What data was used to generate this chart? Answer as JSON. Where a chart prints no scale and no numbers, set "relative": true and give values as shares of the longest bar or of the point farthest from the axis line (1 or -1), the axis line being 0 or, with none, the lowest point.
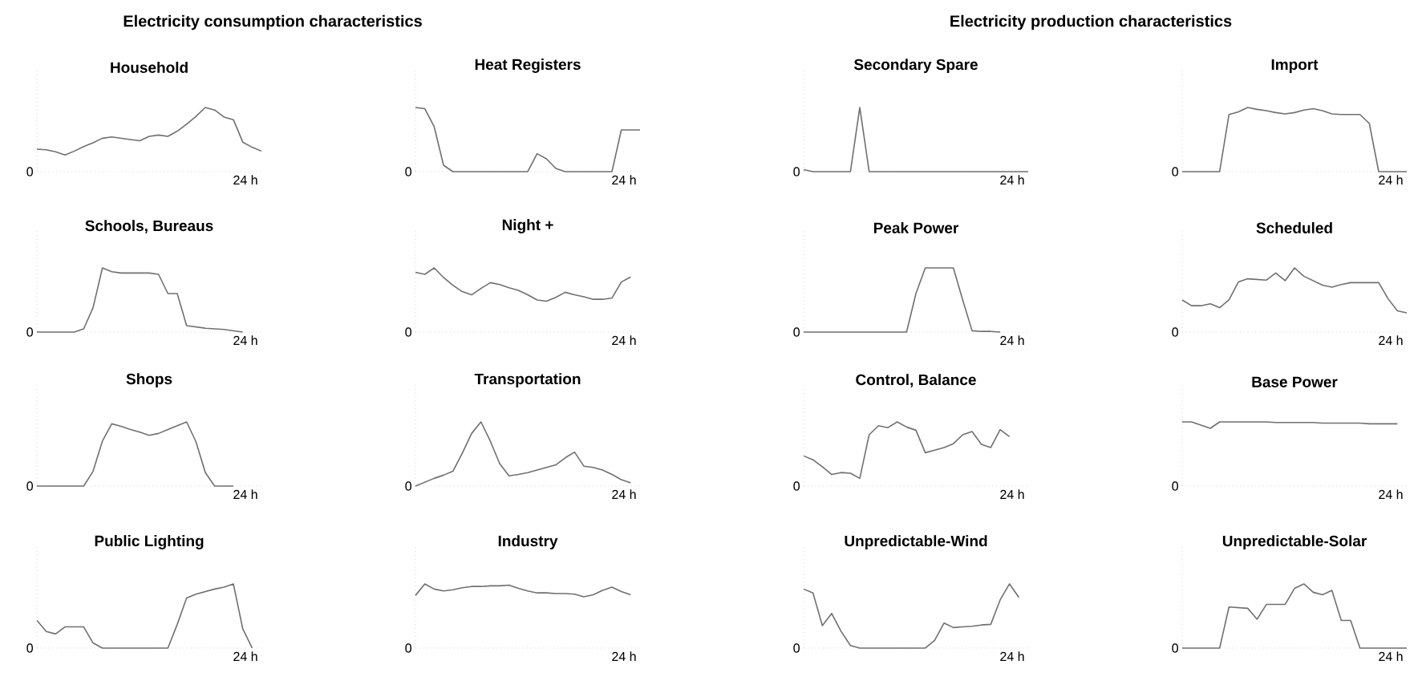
{
  "chart_data": [
    {
      "type": "other",
      "title": "Electricity consumption characteristics"
    },
    {
      "type": "other",
      "title": "Electricity production characteristics"
    },
    {
      "type": "line",
      "title": "Household",
      "relative": true,
      "color": "#707070",
      "annotations": [
        "0",
        "24 h"
      ],
      "categories": [
        null,
        null,
        null,
        null,
        null,
        null,
        null,
        null,
        null,
        null,
        null,
        null,
        null,
        null,
        null,
        null,
        null,
        null,
        null,
        null,
        null,
        null,
        null,
        null,
        null
      ],
      "values": [
        0.35,
        0.34,
        0.31,
        0.26,
        0.32,
        0.39,
        0.45,
        0.52,
        0.54,
        0.52,
        0.5,
        0.48,
        0.55,
        0.57,
        0.55,
        0.63,
        0.74,
        0.86,
        1,
        0.96,
        0.85,
        0.81,
        0.46,
        0.38,
        0.32
      ]
    },
    {
      "type": "line",
      "title": "Heat Registers",
      "relative": true,
      "color": "#707070",
      "annotations": [
        "0",
        "24 h"
      ],
      "categories": [
        null,
        null,
        null,
        null,
        null,
        null,
        null,
        null,
        null,
        null,
        null,
        null,
        null,
        null,
        null,
        null,
        null,
        null,
        null,
        null,
        null,
        null,
        null,
        null,
        null
      ],
      "values": [
        1,
        0.98,
        0.7,
        0.1,
        0,
        0,
        0,
        0,
        0,
        0,
        0,
        0,
        0,
        0.28,
        0.2,
        0.05,
        0,
        0,
        0,
        0,
        0,
        0,
        0.65,
        0.65,
        0.65
      ]
    },
    {
      "type": "line",
      "title": "Secondary Spare",
      "relative": true,
      "color": "#707070",
      "annotations": [
        "0",
        "24 h"
      ],
      "categories": [
        null,
        null,
        null,
        null,
        null,
        null,
        null,
        null,
        null,
        null,
        null,
        null,
        null,
        null,
        null,
        null,
        null,
        null,
        null,
        null,
        null,
        null,
        null,
        null,
        null
      ],
      "values": [
        0.03,
        0,
        0,
        0,
        0,
        0,
        1,
        0,
        0,
        0,
        0,
        0,
        0,
        0,
        0,
        0,
        0,
        0,
        0,
        0,
        0,
        0,
        0,
        0,
        0
      ]
    },
    {
      "type": "line",
      "title": "Import",
      "relative": true,
      "color": "#707070",
      "annotations": [
        "0",
        "24 h"
      ],
      "categories": [
        null,
        null,
        null,
        null,
        null,
        null,
        null,
        null,
        null,
        null,
        null,
        null,
        null,
        null,
        null,
        null,
        null,
        null,
        null,
        null,
        null,
        null,
        null,
        null,
        null
      ],
      "values": [
        0,
        0,
        0,
        0,
        0,
        0.89,
        0.93,
        1,
        0.97,
        0.95,
        0.92,
        0.9,
        0.92,
        0.96,
        0.98,
        0.95,
        0.9,
        0.89,
        0.89,
        0.89,
        0.75,
        0,
        0,
        0,
        0
      ]
    },
    {
      "type": "line",
      "title": "Schools, Bureaus",
      "relative": true,
      "color": "#707070",
      "annotations": [
        "0",
        "24 h"
      ],
      "categories": [
        null,
        null,
        null,
        null,
        null,
        null,
        null,
        null,
        null,
        null,
        null,
        null,
        null,
        null,
        null,
        null,
        null,
        null,
        null,
        null,
        null,
        null,
        null
      ],
      "values": [
        0,
        0,
        0,
        0,
        0,
        0.05,
        0.38,
        1,
        0.94,
        0.92,
        0.92,
        0.92,
        0.92,
        0.9,
        0.6,
        0.6,
        0.1,
        0.08,
        0.06,
        0.05,
        0.04,
        0.02,
        0
      ]
    },
    {
      "type": "line",
      "title": "Night +",
      "relative": true,
      "color": "#707070",
      "annotations": [
        "0",
        "24 h"
      ],
      "categories": [
        null,
        null,
        null,
        null,
        null,
        null,
        null,
        null,
        null,
        null,
        null,
        null,
        null,
        null,
        null,
        null,
        null,
        null,
        null,
        null,
        null,
        null,
        null,
        null
      ],
      "values": [
        0.93,
        0.9,
        1,
        0.85,
        0.73,
        0.63,
        0.58,
        0.68,
        0.77,
        0.74,
        0.69,
        0.65,
        0.58,
        0.5,
        0.48,
        0.54,
        0.62,
        0.58,
        0.55,
        0.51,
        0.51,
        0.53,
        0.78,
        0.86
      ]
    },
    {
      "type": "line",
      "title": "Peak Power",
      "relative": true,
      "color": "#707070",
      "annotations": [
        "0",
        "24 h"
      ],
      "categories": [
        null,
        null,
        null,
        null,
        null,
        null,
        null,
        null,
        null,
        null,
        null,
        null,
        null,
        null,
        null,
        null,
        null,
        null,
        null,
        null,
        null,
        null
      ],
      "values": [
        0,
        0,
        0,
        0,
        0,
        0,
        0,
        0,
        0,
        0,
        0,
        0,
        0.6,
        1,
        1,
        1,
        1,
        0.5,
        0.02,
        0.01,
        0.01,
        0
      ]
    },
    {
      "type": "line",
      "title": "Scheduled",
      "relative": true,
      "color": "#707070",
      "annotations": [
        "0",
        "24 h"
      ],
      "categories": [
        null,
        null,
        null,
        null,
        null,
        null,
        null,
        null,
        null,
        null,
        null,
        null,
        null,
        null,
        null,
        null,
        null,
        null,
        null,
        null,
        null,
        null,
        null,
        null,
        null
      ],
      "values": [
        0.5,
        0.41,
        0.41,
        0.44,
        0.38,
        0.5,
        0.78,
        0.83,
        0.82,
        0.81,
        0.92,
        0.8,
        1,
        0.87,
        0.8,
        0.73,
        0.7,
        0.74,
        0.77,
        0.77,
        0.77,
        0.77,
        0.52,
        0.33,
        0.3
      ]
    },
    {
      "type": "line",
      "title": "Shops",
      "relative": true,
      "color": "#707070",
      "annotations": [
        "0",
        "24 h"
      ],
      "categories": [
        null,
        null,
        null,
        null,
        null,
        null,
        null,
        null,
        null,
        null,
        null,
        null,
        null,
        null,
        null,
        null,
        null,
        null,
        null,
        null,
        null,
        null
      ],
      "values": [
        0,
        0,
        0,
        0,
        0,
        0,
        0.23,
        0.7,
        0.97,
        0.93,
        0.88,
        0.84,
        0.79,
        0.82,
        0.88,
        0.94,
        1,
        0.69,
        0.21,
        0,
        0,
        0
      ]
    },
    {
      "type": "line",
      "title": "Transportation",
      "relative": true,
      "color": "#707070",
      "annotations": [
        "0",
        "24 h"
      ],
      "categories": [
        null,
        null,
        null,
        null,
        null,
        null,
        null,
        null,
        null,
        null,
        null,
        null,
        null,
        null,
        null,
        null,
        null,
        null,
        null,
        null,
        null,
        null,
        null,
        null
      ],
      "values": [
        0,
        0.06,
        0.12,
        0.17,
        0.23,
        0.51,
        0.82,
        1,
        0.7,
        0.35,
        0.16,
        0.18,
        0.21,
        0.25,
        0.29,
        0.33,
        0.44,
        0.53,
        0.31,
        0.29,
        0.25,
        0.18,
        0.1,
        0.05
      ]
    },
    {
      "type": "line",
      "title": "Control, Balance",
      "relative": true,
      "color": "#707070",
      "annotations": [
        "0",
        "24 h"
      ],
      "categories": [
        null,
        null,
        null,
        null,
        null,
        null,
        null,
        null,
        null,
        null,
        null,
        null,
        null,
        null,
        null,
        null,
        null,
        null,
        null,
        null,
        null,
        null,
        null
      ],
      "values": [
        0.47,
        0.41,
        0.3,
        0.18,
        0.21,
        0.2,
        0.12,
        0.8,
        0.94,
        0.91,
        1,
        0.92,
        0.87,
        0.52,
        0.56,
        0.6,
        0.66,
        0.8,
        0.85,
        0.65,
        0.6,
        0.88,
        0.77
      ]
    },
    {
      "type": "line",
      "title": "Base Power",
      "relative": true,
      "color": "#707070",
      "annotations": [
        "0",
        "24 h"
      ],
      "categories": [
        null,
        null,
        null,
        null,
        null,
        null,
        null,
        null,
        null,
        null,
        null,
        null,
        null,
        null,
        null,
        null,
        null,
        null,
        null,
        null,
        null,
        null,
        null,
        null
      ],
      "values": [
        1,
        1,
        0.95,
        0.9,
        1,
        1,
        1,
        1,
        1,
        1,
        0.99,
        0.99,
        0.99,
        0.99,
        0.99,
        0.98,
        0.98,
        0.98,
        0.98,
        0.98,
        0.97,
        0.97,
        0.97,
        0.97
      ]
    },
    {
      "type": "line",
      "title": "Public Lighting",
      "relative": true,
      "color": "#707070",
      "annotations": [
        "0",
        "24 h"
      ],
      "categories": [
        null,
        null,
        null,
        null,
        null,
        null,
        null,
        null,
        null,
        null,
        null,
        null,
        null,
        null,
        null,
        null,
        null,
        null,
        null,
        null,
        null,
        null,
        null,
        null
      ],
      "values": [
        0.43,
        0.26,
        0.22,
        0.33,
        0.33,
        0.33,
        0.08,
        0,
        0,
        0,
        0,
        0,
        0,
        0,
        0,
        0.37,
        0.78,
        0.84,
        0.88,
        0.92,
        0.95,
        1,
        0.3,
        0
      ]
    },
    {
      "type": "line",
      "title": "Industry",
      "relative": true,
      "color": "#707070",
      "annotations": [
        "0",
        "24 h"
      ],
      "categories": [
        null,
        null,
        null,
        null,
        null,
        null,
        null,
        null,
        null,
        null,
        null,
        null,
        null,
        null,
        null,
        null,
        null,
        null,
        null,
        null,
        null,
        null,
        null,
        null
      ],
      "values": [
        0.82,
        1,
        0.92,
        0.89,
        0.91,
        0.94,
        0.96,
        0.96,
        0.97,
        0.97,
        0.98,
        0.93,
        0.89,
        0.86,
        0.86,
        0.85,
        0.85,
        0.84,
        0.8,
        0.83,
        0.9,
        0.95,
        0.88,
        0.83
      ]
    },
    {
      "type": "line",
      "title": "Unpredictable-Wind",
      "relative": true,
      "color": "#707070",
      "annotations": [
        "0",
        "24 h"
      ],
      "categories": [
        null,
        null,
        null,
        null,
        null,
        null,
        null,
        null,
        null,
        null,
        null,
        null,
        null,
        null,
        null,
        null,
        null,
        null,
        null,
        null,
        null,
        null,
        null,
        null
      ],
      "values": [
        0.92,
        0.86,
        0.35,
        0.54,
        0.26,
        0.04,
        0,
        0,
        0,
        0,
        0,
        0,
        0,
        0,
        0.12,
        0.39,
        0.32,
        0.33,
        0.34,
        0.36,
        0.37,
        0.75,
        1,
        0.79
      ]
    },
    {
      "type": "line",
      "title": "Unpredictable-Solar",
      "relative": true,
      "color": "#707070",
      "annotations": [
        "0",
        "24 h"
      ],
      "categories": [
        null,
        null,
        null,
        null,
        null,
        null,
        null,
        null,
        null,
        null,
        null,
        null,
        null,
        null,
        null,
        null,
        null,
        null,
        null,
        null,
        null,
        null,
        null,
        null,
        null
      ],
      "values": [
        0,
        0,
        0,
        0,
        0,
        0.64,
        0.63,
        0.62,
        0.45,
        0.68,
        0.68,
        0.68,
        0.93,
        1,
        0.87,
        0.83,
        0.9,
        0.43,
        0.43,
        0,
        0,
        0,
        0,
        0,
        0
      ]
    }
  ]
}
